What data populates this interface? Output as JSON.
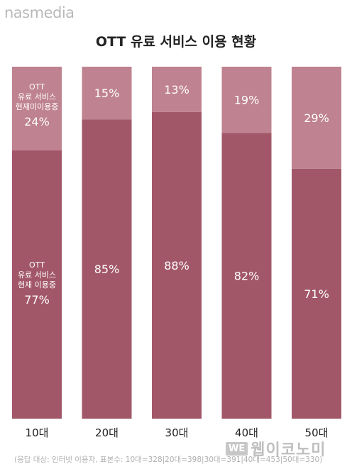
{
  "brand": "nasmedia",
  "chart_data": {
    "type": "bar",
    "stacked": true,
    "normalized_percent": true,
    "title": "OTT 유료 서비스 이용 현황",
    "categories": [
      "10대",
      "20대",
      "30대",
      "40대",
      "50대"
    ],
    "series": [
      {
        "name": "OTT 유료 서비스 현재 이용중",
        "values": [
          77,
          85,
          88,
          82,
          71
        ],
        "labels": [
          "77%",
          "85%",
          "88%",
          "82%",
          "71%"
        ],
        "color": "#a25768"
      },
      {
        "name": "OTT 유료 서비스 현재 미이용중",
        "values": [
          24,
          15,
          13,
          19,
          29
        ],
        "labels": [
          "24%",
          "15%",
          "13%",
          "19%",
          "29%"
        ],
        "color": "#bf8290"
      }
    ],
    "inline_labels": {
      "using": [
        "OTT",
        "유료 서비스",
        "현재 이용중"
      ],
      "not_using": [
        "OTT",
        "유료 서비스",
        "현재미이용중"
      ]
    },
    "ylim": [
      0,
      100
    ],
    "grid": false,
    "xlabel": "",
    "ylabel": ""
  },
  "footnote": "(응답 대상: 인터넷 이용자, 표본수: 10대=328|20대=398|30대=391|40대=453|50대=330)",
  "watermark": {
    "logo": "WE",
    "text": "웹이코노미"
  }
}
